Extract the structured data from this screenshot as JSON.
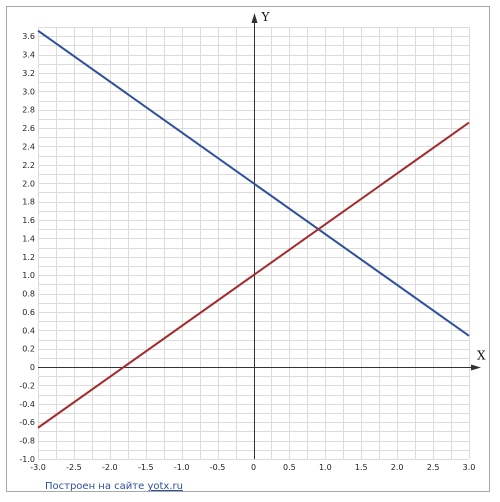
{
  "chart_data": {
    "type": "line",
    "xlabel": "X",
    "ylabel": "Y",
    "xlim": [
      -3.0,
      3.0
    ],
    "ylim": [
      -1.0,
      3.7
    ],
    "x_ticks": [
      "-3.0",
      "-2.5",
      "-2.0",
      "-1.5",
      "-1.0",
      "-0.5",
      "0",
      "0.5",
      "1.0",
      "1.5",
      "2.0",
      "2.5",
      "3.0"
    ],
    "y_ticks": [
      "-1.0",
      "-0.8",
      "-0.6",
      "-0.4",
      "-0.2",
      "0",
      "0.2",
      "0.4",
      "0.6",
      "0.8",
      "1.0",
      "1.2",
      "1.4",
      "1.6",
      "1.8",
      "2.0",
      "2.2",
      "2.4",
      "2.6",
      "2.8",
      "3.0",
      "3.2",
      "3.4",
      "3.6"
    ],
    "grid": true,
    "series": [
      {
        "color": "#2f4f9f",
        "x": [
          -3.0,
          3.0
        ],
        "y": [
          3.66,
          0.34
        ]
      },
      {
        "color": "#a52a2a",
        "x": [
          -3.0,
          3.0
        ],
        "y": [
          -0.66,
          2.66
        ]
      }
    ]
  },
  "footer": {
    "prefix": "Построен на сайте",
    "link": "yotx.ru"
  }
}
